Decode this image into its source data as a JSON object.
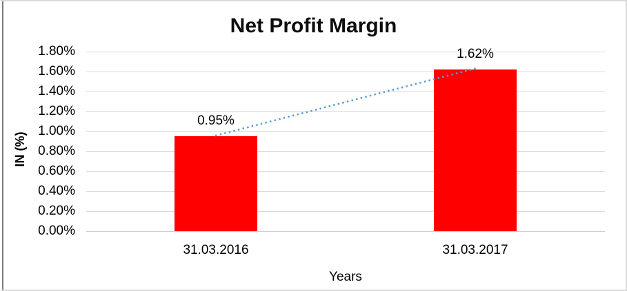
{
  "chart_data": {
    "type": "bar",
    "title": "Net Profit Margin",
    "categories": [
      "31.03.2016",
      "31.03.2017"
    ],
    "values": [
      0.95,
      1.62
    ],
    "value_labels": [
      "0.95%",
      "1.62%"
    ],
    "xlabel": "Years",
    "ylabel": "IN (%)",
    "ylim": [
      0,
      1.8
    ],
    "ytick_step": 0.2,
    "ytick_labels": [
      "0.00%",
      "0.20%",
      "0.40%",
      "0.60%",
      "0.80%",
      "1.00%",
      "1.20%",
      "1.40%",
      "1.60%",
      "1.80%"
    ],
    "bar_color": "#FF0000",
    "gridline_color": "#D9D9D9",
    "trendline": {
      "type": "linear",
      "style": "dotted",
      "color": "#5B9BD5"
    },
    "legend": "none",
    "grid": "horizontal"
  }
}
